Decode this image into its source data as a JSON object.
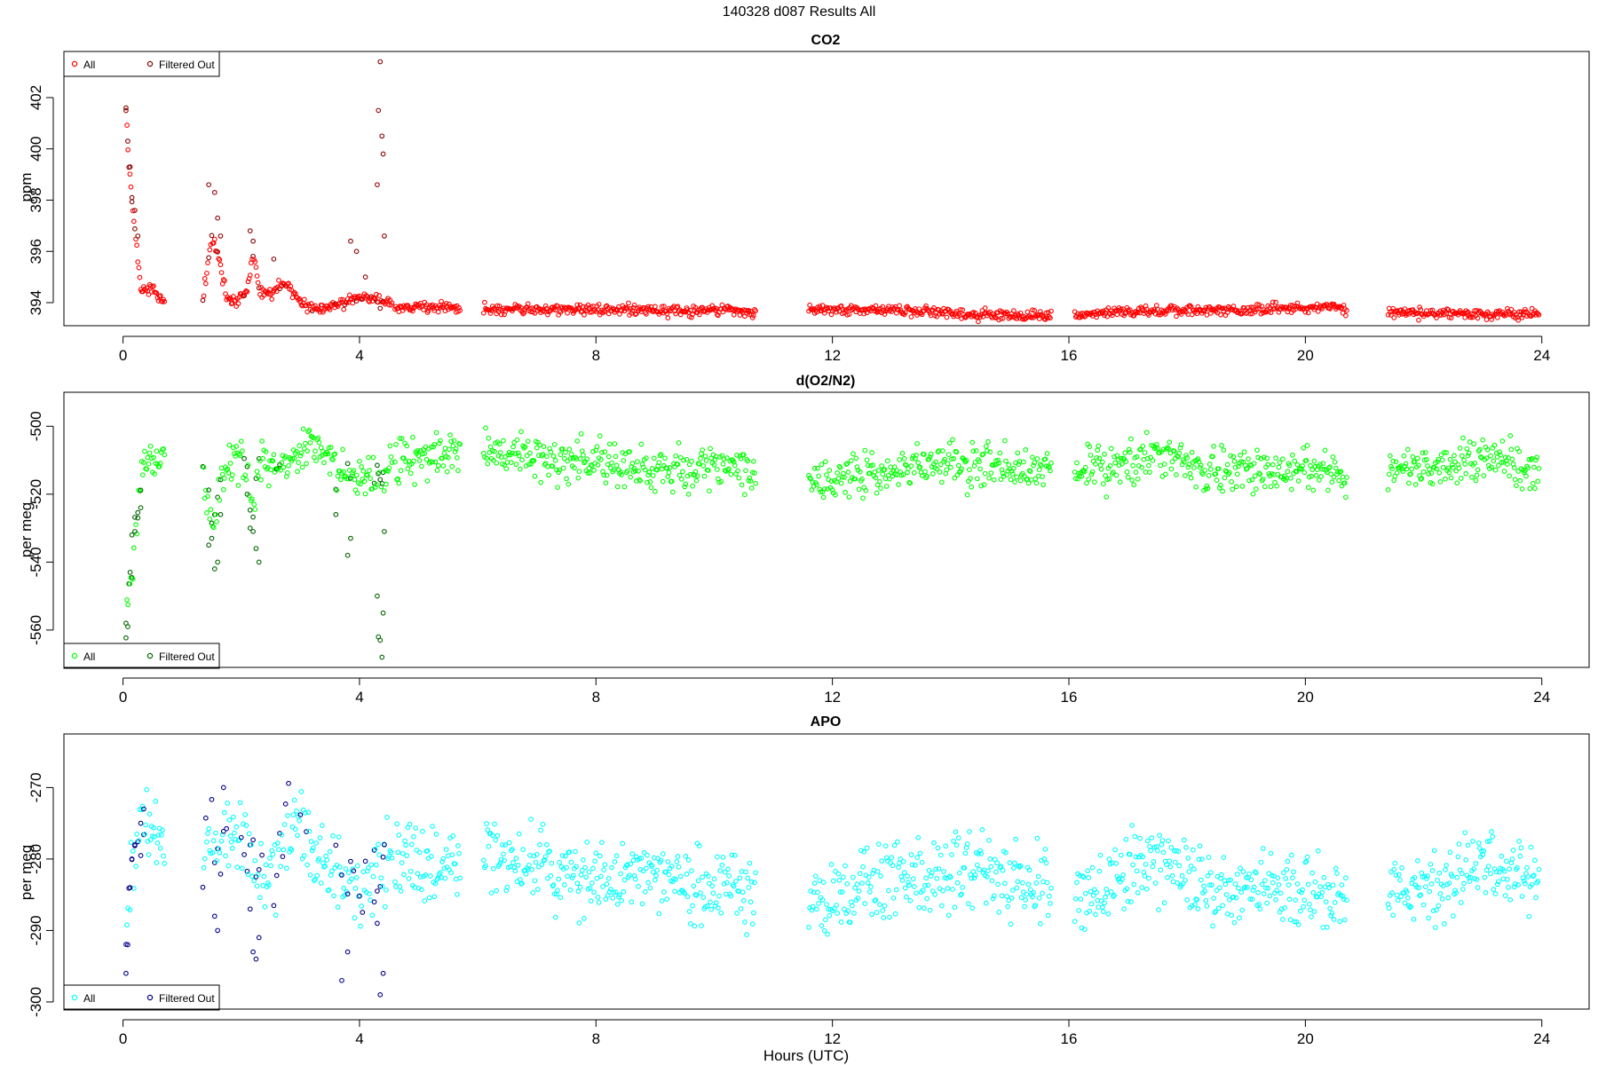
{
  "figure_title": "140328   d087   Results All",
  "xlabel": "Hours (UTC)",
  "legend_labels": {
    "all": "All",
    "filtered": "Filtered Out"
  },
  "chart_data": [
    {
      "type": "scatter",
      "title": "CO2",
      "ylabel": "ppm",
      "xlim": [
        -1,
        24.8
      ],
      "ylim": [
        393.1,
        403.8
      ],
      "xticks": [
        0,
        4,
        8,
        12,
        16,
        20,
        24
      ],
      "yticks": [
        394,
        396,
        398,
        400,
        402
      ],
      "legend_position": "top-left",
      "colors": {
        "all": "#ff0000",
        "filtered": "#8b0000"
      },
      "noise": 0.15,
      "segments": [
        {
          "x": [
            0.05,
            0.7
          ],
          "y": [
            [
              0.05,
              401.5
            ],
            [
              0.1,
              399.5
            ],
            [
              0.15,
              398.0
            ],
            [
              0.2,
              397.0
            ],
            [
              0.25,
              395.6
            ],
            [
              0.3,
              394.6
            ],
            [
              0.4,
              394.4
            ],
            [
              0.5,
              394.5
            ],
            [
              0.6,
              394.2
            ],
            [
              0.7,
              394.0
            ]
          ]
        },
        {
          "x": [
            1.35,
            4.55
          ],
          "y": [
            [
              1.35,
              394.2
            ],
            [
              1.5,
              396.5
            ],
            [
              1.6,
              396.0
            ],
            [
              1.75,
              394.2
            ],
            [
              1.9,
              394.0
            ],
            [
              2.1,
              394.5
            ],
            [
              2.2,
              396.0
            ],
            [
              2.3,
              394.5
            ],
            [
              2.5,
              394.3
            ],
            [
              2.7,
              394.8
            ],
            [
              2.9,
              394.3
            ],
            [
              3.1,
              393.9
            ],
            [
              3.3,
              393.7
            ],
            [
              3.5,
              393.8
            ],
            [
              3.7,
              394.0
            ],
            [
              3.9,
              394.1
            ],
            [
              4.1,
              394.2
            ],
            [
              4.3,
              394.1
            ],
            [
              4.45,
              394.0
            ],
            [
              4.55,
              393.9
            ]
          ]
        },
        {
          "x": [
            4.6,
            5.7
          ],
          "y": [
            [
              4.6,
              393.85
            ],
            [
              5.7,
              393.8
            ]
          ]
        },
        {
          "x": [
            6.1,
            10.7
          ],
          "y": [
            [
              6.1,
              393.75
            ],
            [
              8.0,
              393.75
            ],
            [
              9.0,
              393.7
            ],
            [
              10.0,
              393.72
            ],
            [
              10.7,
              393.6
            ]
          ]
        },
        {
          "x": [
            11.6,
            15.7
          ],
          "y": [
            [
              11.6,
              393.72
            ],
            [
              13.0,
              393.7
            ],
            [
              14.0,
              393.6
            ],
            [
              15.0,
              393.5
            ],
            [
              15.7,
              393.5
            ]
          ]
        },
        {
          "x": [
            16.1,
            20.7
          ],
          "y": [
            [
              16.1,
              393.5
            ],
            [
              17.0,
              393.65
            ],
            [
              18.0,
              393.7
            ],
            [
              19.0,
              393.72
            ],
            [
              20.0,
              393.8
            ],
            [
              20.5,
              393.85
            ],
            [
              20.7,
              393.7
            ]
          ]
        },
        {
          "x": [
            21.4,
            23.95
          ],
          "y": [
            [
              21.4,
              393.6
            ],
            [
              22.0,
              393.6
            ],
            [
              23.0,
              393.55
            ],
            [
              23.95,
              393.55
            ]
          ]
        }
      ],
      "filtered_x": [
        0.05,
        0.1,
        0.15,
        0.2,
        1.35,
        1.45,
        1.5,
        1.6,
        2.05,
        2.2,
        2.3,
        2.65,
        2.75,
        3.2,
        3.6,
        3.75,
        3.95,
        4.05,
        4.2,
        4.3,
        4.35,
        4.4
      ],
      "highlights": [
        [
          0.05,
          401.6
        ],
        [
          0.08,
          400.3
        ],
        [
          0.12,
          399.3
        ],
        [
          0.15,
          398.1
        ],
        [
          0.2,
          397.6
        ],
        [
          0.25,
          396.6
        ],
        [
          1.45,
          398.6
        ],
        [
          1.55,
          398.3
        ],
        [
          1.6,
          397.3
        ],
        [
          1.65,
          396.6
        ],
        [
          2.15,
          396.8
        ],
        [
          2.2,
          396.4
        ],
        [
          2.55,
          395.7
        ],
        [
          3.85,
          396.4
        ],
        [
          3.95,
          396.0
        ],
        [
          4.1,
          395.0
        ],
        [
          4.3,
          398.6
        ],
        [
          4.32,
          401.5
        ],
        [
          4.35,
          403.4
        ],
        [
          4.38,
          400.5
        ],
        [
          4.4,
          399.8
        ],
        [
          4.42,
          396.6
        ]
      ]
    },
    {
      "type": "scatter",
      "title": "d(O2/N2)",
      "ylabel": "per meg",
      "xlim": [
        -1,
        24.8
      ],
      "ylim": [
        -571,
        -490
      ],
      "xticks": [
        0,
        4,
        8,
        12,
        16,
        20,
        24
      ],
      "yticks": [
        -560,
        -540,
        -520,
        -500
      ],
      "legend_position": "bottom-left",
      "colors": {
        "all": "#00ff00",
        "filtered": "#006400"
      },
      "noise": 4.5,
      "segments": [
        {
          "x": [
            0.05,
            0.7
          ],
          "y": [
            [
              0.05,
              -558
            ],
            [
              0.15,
              -540
            ],
            [
              0.2,
              -530
            ],
            [
              0.3,
              -515
            ],
            [
              0.4,
              -508
            ],
            [
              0.7,
              -509
            ]
          ]
        },
        {
          "x": [
            1.35,
            4.55
          ],
          "y": [
            [
              1.35,
              -512
            ],
            [
              1.5,
              -530
            ],
            [
              1.7,
              -512
            ],
            [
              2.0,
              -509
            ],
            [
              2.2,
              -525
            ],
            [
              2.3,
              -512
            ],
            [
              2.8,
              -510
            ],
            [
              3.2,
              -507
            ],
            [
              3.6,
              -512
            ],
            [
              4.0,
              -515
            ],
            [
              4.3,
              -517
            ],
            [
              4.55,
              -510
            ]
          ]
        },
        {
          "x": [
            4.6,
            5.7
          ],
          "y": [
            [
              4.6,
              -510
            ],
            [
              5.7,
              -508
            ]
          ]
        },
        {
          "x": [
            6.1,
            10.7
          ],
          "y": [
            [
              6.1,
              -508
            ],
            [
              8.0,
              -511
            ],
            [
              9.0,
              -513
            ],
            [
              10.0,
              -512
            ],
            [
              10.7,
              -513
            ]
          ]
        },
        {
          "x": [
            11.6,
            15.7
          ],
          "y": [
            [
              11.6,
              -516
            ],
            [
              13.0,
              -513
            ],
            [
              14.0,
              -511
            ],
            [
              15.0,
              -512
            ],
            [
              15.7,
              -512
            ]
          ]
        },
        {
          "x": [
            16.1,
            20.7
          ],
          "y": [
            [
              16.1,
              -515
            ],
            [
              17.0,
              -511
            ],
            [
              17.5,
              -508
            ],
            [
              18.5,
              -514
            ],
            [
              19.5,
              -512
            ],
            [
              20.5,
              -514
            ],
            [
              20.7,
              -516
            ]
          ]
        },
        {
          "x": [
            21.4,
            23.95
          ],
          "y": [
            [
              21.4,
              -513
            ],
            [
              22.5,
              -512
            ],
            [
              23.0,
              -509
            ],
            [
              23.95,
              -512
            ]
          ]
        }
      ],
      "filtered_x": [
        0.05,
        0.1,
        0.15,
        0.2,
        0.25,
        0.3,
        1.35,
        1.45,
        1.5,
        1.55,
        1.6,
        1.65,
        2.05,
        2.1,
        2.15,
        2.2,
        2.25,
        2.3,
        2.6,
        2.65,
        3.6,
        3.8,
        3.85,
        4.25,
        4.3,
        4.32,
        4.35,
        4.38,
        4.4
      ],
      "highlights": [
        [
          0.05,
          -558
        ],
        [
          0.08,
          -559
        ],
        [
          0.12,
          -543
        ],
        [
          0.15,
          -532
        ],
        [
          0.2,
          -531
        ],
        [
          0.25,
          -527
        ],
        [
          0.3,
          -524
        ],
        [
          1.45,
          -535
        ],
        [
          1.5,
          -533
        ],
        [
          1.55,
          -542
        ],
        [
          1.6,
          -540
        ],
        [
          1.65,
          -526
        ],
        [
          2.1,
          -520
        ],
        [
          2.15,
          -530
        ],
        [
          2.2,
          -531
        ],
        [
          2.25,
          -536
        ],
        [
          2.3,
          -540
        ],
        [
          3.6,
          -526
        ],
        [
          3.8,
          -538
        ],
        [
          3.85,
          -533
        ],
        [
          4.3,
          -550
        ],
        [
          4.32,
          -562
        ],
        [
          4.35,
          -563
        ],
        [
          4.38,
          -568
        ],
        [
          4.4,
          -555
        ],
        [
          4.42,
          -531
        ]
      ]
    },
    {
      "type": "scatter",
      "title": "APO",
      "ylabel": "per meg",
      "xlim": [
        -1,
        24.8
      ],
      "ylim": [
        -301,
        -262.5
      ],
      "xticks": [
        0,
        4,
        8,
        12,
        16,
        20,
        24
      ],
      "yticks": [
        -300,
        -290,
        -280,
        -270
      ],
      "legend_position": "bottom-left",
      "colors": {
        "all": "#00ffff",
        "filtered": "#00008b"
      },
      "noise": 3.8,
      "segments": [
        {
          "x": [
            0.05,
            0.7
          ],
          "y": [
            [
              0.05,
              -293
            ],
            [
              0.15,
              -282
            ],
            [
              0.25,
              -278
            ],
            [
              0.4,
              -275
            ],
            [
              0.7,
              -278
            ]
          ]
        },
        {
          "x": [
            1.35,
            4.55
          ],
          "y": [
            [
              1.35,
              -279
            ],
            [
              1.6,
              -278
            ],
            [
              2.0,
              -278
            ],
            [
              2.3,
              -282
            ],
            [
              2.6,
              -281
            ],
            [
              2.9,
              -276
            ],
            [
              3.2,
              -279
            ],
            [
              3.6,
              -282
            ],
            [
              4.0,
              -284
            ],
            [
              4.3,
              -282
            ],
            [
              4.55,
              -280
            ]
          ]
        },
        {
          "x": [
            4.6,
            5.7
          ],
          "y": [
            [
              4.6,
              -280
            ],
            [
              5.7,
              -281
            ]
          ]
        },
        {
          "x": [
            6.1,
            10.7
          ],
          "y": [
            [
              6.1,
              -278
            ],
            [
              7.0,
              -281
            ],
            [
              8.0,
              -283
            ],
            [
              9.0,
              -282
            ],
            [
              10.0,
              -284
            ],
            [
              10.7,
              -285
            ]
          ]
        },
        {
          "x": [
            11.6,
            15.7
          ],
          "y": [
            [
              11.6,
              -286
            ],
            [
              12.5,
              -284
            ],
            [
              13.5,
              -282
            ],
            [
              14.5,
              -281
            ],
            [
              15.7,
              -283
            ]
          ]
        },
        {
          "x": [
            16.1,
            20.7
          ],
          "y": [
            [
              16.1,
              -286
            ],
            [
              17.0,
              -282
            ],
            [
              17.5,
              -280
            ],
            [
              18.5,
              -285
            ],
            [
              19.5,
              -284
            ],
            [
              20.7,
              -286
            ]
          ]
        },
        {
          "x": [
            21.4,
            23.95
          ],
          "y": [
            [
              21.4,
              -285
            ],
            [
              22.5,
              -283
            ],
            [
              23.0,
              -280
            ],
            [
              23.95,
              -284
            ]
          ]
        }
      ],
      "filtered_x": [
        0.05,
        0.1,
        0.15,
        0.2,
        0.25,
        0.3,
        0.35,
        1.35,
        1.4,
        1.5,
        1.55,
        1.6,
        1.65,
        1.7,
        1.75,
        2.0,
        2.05,
        2.1,
        2.15,
        2.2,
        2.25,
        2.3,
        2.35,
        2.55,
        2.6,
        2.65,
        2.7,
        2.75,
        2.8,
        3.0,
        3.1,
        3.6,
        3.7,
        3.8,
        3.85,
        3.9,
        4.0,
        4.05,
        4.1,
        4.25,
        4.3,
        4.35,
        4.4
      ],
      "highlights": [
        [
          0.05,
          -296
        ],
        [
          0.08,
          -292
        ],
        [
          0.12,
          -284
        ],
        [
          0.15,
          -280
        ],
        [
          0.2,
          -278
        ],
        [
          0.3,
          -275
        ],
        [
          0.35,
          -273
        ],
        [
          1.55,
          -288
        ],
        [
          1.6,
          -290
        ],
        [
          1.7,
          -270
        ],
        [
          2.15,
          -287
        ],
        [
          2.2,
          -293
        ],
        [
          2.25,
          -294
        ],
        [
          2.3,
          -291
        ],
        [
          3.7,
          -297
        ],
        [
          3.8,
          -293
        ],
        [
          4.25,
          -286
        ],
        [
          4.3,
          -289
        ],
        [
          4.35,
          -299
        ],
        [
          4.4,
          -296
        ],
        [
          4.42,
          -278
        ]
      ]
    }
  ]
}
